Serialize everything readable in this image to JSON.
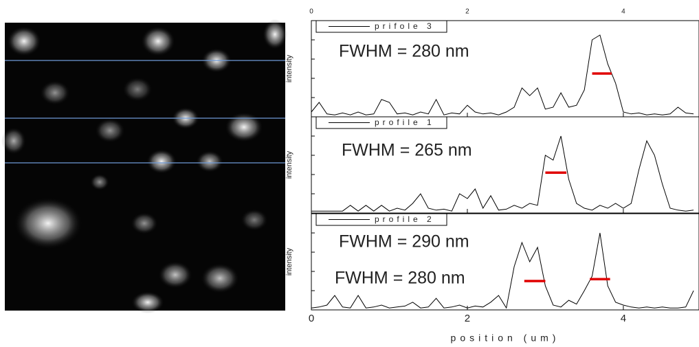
{
  "chart_data": [
    {
      "type": "line",
      "legend": "prifole 3",
      "ylabel": "intensity",
      "xlim": [
        0,
        4.97
      ],
      "ylim": [
        0,
        1
      ],
      "xticks": [
        0,
        2,
        4
      ],
      "annotations": [
        "FWHM = 280 nm"
      ],
      "fwhm_markers": [
        {
          "x": [
            3.6,
            3.85
          ],
          "y": 0.45
        }
      ],
      "series": [
        {
          "color": "#000000",
          "x": [
            0,
            0.1,
            0.2,
            0.3,
            0.4,
            0.5,
            0.6,
            0.7,
            0.8,
            0.9,
            1.0,
            1.1,
            1.2,
            1.3,
            1.4,
            1.5,
            1.6,
            1.7,
            1.8,
            1.9,
            2.0,
            2.1,
            2.2,
            2.3,
            2.4,
            2.5,
            2.6,
            2.7,
            2.8,
            2.9,
            3.0,
            3.1,
            3.2,
            3.3,
            3.4,
            3.5,
            3.6,
            3.7,
            3.8,
            3.9,
            4.0,
            4.1,
            4.2,
            4.3,
            4.4,
            4.5,
            4.6,
            4.7,
            4.8,
            4.9
          ],
          "values": [
            0.05,
            0.15,
            0.03,
            0.02,
            0.04,
            0.02,
            0.05,
            0.02,
            0.03,
            0.18,
            0.15,
            0.03,
            0.04,
            0.02,
            0.05,
            0.03,
            0.18,
            0.02,
            0.04,
            0.03,
            0.12,
            0.05,
            0.03,
            0.04,
            0.02,
            0.05,
            0.1,
            0.3,
            0.22,
            0.3,
            0.08,
            0.1,
            0.25,
            0.1,
            0.12,
            0.28,
            0.8,
            0.85,
            0.55,
            0.35,
            0.05,
            0.03,
            0.04,
            0.02,
            0.03,
            0.02,
            0.03,
            0.1,
            0.04,
            0.03
          ]
        }
      ]
    },
    {
      "type": "line",
      "legend": "profile 1",
      "ylabel": "intensity",
      "xlim": [
        0,
        4.97
      ],
      "ylim": [
        0,
        1
      ],
      "xticks": [
        0,
        2,
        4
      ],
      "annotations": [
        "FWHM = 265 nm"
      ],
      "fwhm_markers": [
        {
          "x": [
            3.0,
            3.27
          ],
          "y": 0.42
        }
      ],
      "series": [
        {
          "color": "#000000",
          "x": [
            0,
            0.1,
            0.2,
            0.3,
            0.4,
            0.5,
            0.6,
            0.7,
            0.8,
            0.9,
            1.0,
            1.1,
            1.2,
            1.3,
            1.4,
            1.5,
            1.6,
            1.7,
            1.8,
            1.9,
            2.0,
            2.1,
            2.2,
            2.3,
            2.4,
            2.5,
            2.6,
            2.7,
            2.8,
            2.9,
            3.0,
            3.1,
            3.2,
            3.3,
            3.4,
            3.5,
            3.6,
            3.7,
            3.8,
            3.9,
            4.0,
            4.1,
            4.2,
            4.3,
            4.4,
            4.5,
            4.6,
            4.7,
            4.8,
            4.9
          ],
          "values": [
            0.02,
            0.02,
            0.02,
            0.02,
            0.02,
            0.08,
            0.02,
            0.08,
            0.02,
            0.08,
            0.02,
            0.05,
            0.03,
            0.1,
            0.2,
            0.05,
            0.03,
            0.04,
            0.02,
            0.2,
            0.15,
            0.25,
            0.05,
            0.18,
            0.03,
            0.04,
            0.08,
            0.05,
            0.1,
            0.08,
            0.6,
            0.55,
            0.8,
            0.35,
            0.1,
            0.05,
            0.03,
            0.08,
            0.05,
            0.1,
            0.05,
            0.1,
            0.45,
            0.75,
            0.6,
            0.3,
            0.05,
            0.03,
            0.02,
            0.03
          ]
        }
      ]
    },
    {
      "type": "line",
      "legend": "profile 2",
      "ylabel": "intensity",
      "xlabel": "position (um)",
      "xlim": [
        0,
        4.97
      ],
      "ylim": [
        0,
        1
      ],
      "xticks": [
        0,
        2,
        4
      ],
      "annotations": [
        "FWHM = 290 nm",
        "FWHM = 280 nm"
      ],
      "fwhm_markers": [
        {
          "x": [
            2.73,
            3.0
          ],
          "y": 0.3
        },
        {
          "x": [
            3.57,
            3.83
          ],
          "y": 0.32
        }
      ],
      "series": [
        {
          "color": "#000000",
          "x": [
            0,
            0.1,
            0.2,
            0.3,
            0.4,
            0.5,
            0.6,
            0.7,
            0.8,
            0.9,
            1.0,
            1.1,
            1.2,
            1.3,
            1.4,
            1.5,
            1.6,
            1.7,
            1.8,
            1.9,
            2.0,
            2.1,
            2.2,
            2.3,
            2.4,
            2.5,
            2.6,
            2.7,
            2.8,
            2.9,
            3.0,
            3.1,
            3.2,
            3.3,
            3.4,
            3.5,
            3.6,
            3.7,
            3.8,
            3.9,
            4.0,
            4.1,
            4.2,
            4.3,
            4.4,
            4.5,
            4.6,
            4.7,
            4.8,
            4.9
          ],
          "values": [
            0.02,
            0.03,
            0.05,
            0.15,
            0.03,
            0.02,
            0.15,
            0.02,
            0.03,
            0.05,
            0.02,
            0.03,
            0.04,
            0.08,
            0.02,
            0.03,
            0.12,
            0.02,
            0.03,
            0.05,
            0.02,
            0.04,
            0.03,
            0.08,
            0.15,
            0.02,
            0.45,
            0.7,
            0.5,
            0.65,
            0.25,
            0.05,
            0.03,
            0.1,
            0.06,
            0.2,
            0.35,
            0.8,
            0.25,
            0.08,
            0.05,
            0.03,
            0.02,
            0.03,
            0.02,
            0.03,
            0.02,
            0.02,
            0.03,
            0.2
          ]
        }
      ]
    }
  ]
}
